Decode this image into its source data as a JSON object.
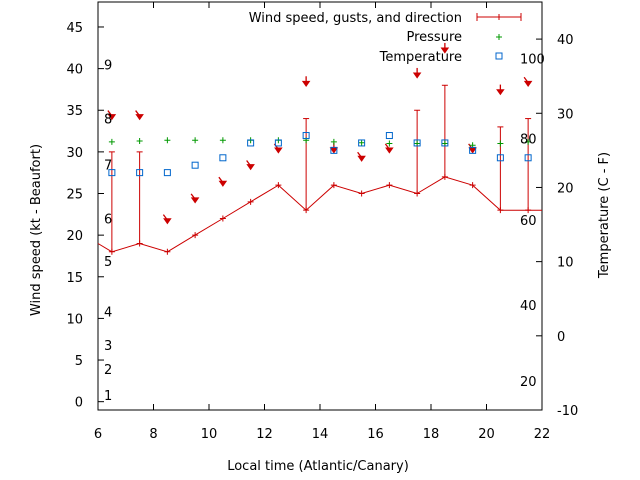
{
  "chart_data": {
    "type": "line",
    "xlabel": "Local time (Atlantic/Canary)",
    "ylabel": "Wind speed (kt - Beaufort)",
    "y2label": "Temperature (C - F)",
    "xlim": [
      6,
      22
    ],
    "ylim": [
      -1,
      48
    ],
    "y2lim": [
      -10,
      45
    ],
    "xticks": [
      "6",
      "8",
      "10",
      "12",
      "14",
      "16",
      "18",
      "20",
      "22"
    ],
    "yticks": [
      "0",
      "5",
      "10",
      "15",
      "20",
      "25",
      "30",
      "35",
      "40",
      "45"
    ],
    "y2ticks": [
      "-10",
      "0",
      "10",
      "20",
      "30",
      "40"
    ],
    "beaufort_labels": [
      "1",
      "2",
      "3",
      "4",
      "5",
      "6",
      "7",
      "8",
      "9"
    ],
    "fahrenheit_labels": [
      "20",
      "40",
      "60",
      "80",
      "100"
    ],
    "legend_position": "top-right",
    "colors": {
      "wind": "#cc0000",
      "pressure": "#009900",
      "temperature": "#0066cc"
    },
    "series": [
      {
        "name": "Wind speed, gusts, and direction",
        "x": [
          6,
          6.5,
          7.5,
          8.5,
          9.5,
          10.5,
          11.5,
          12.5,
          13.5,
          14.5,
          15.5,
          16.5,
          17.5,
          18.5,
          19.5,
          20.5,
          21.5,
          22
        ],
        "values": [
          19,
          18,
          19,
          18,
          20,
          22,
          24,
          26,
          23,
          26,
          25,
          26,
          25,
          27,
          26,
          23,
          23,
          23
        ],
        "gusts": [
          null,
          30,
          30,
          null,
          null,
          null,
          null,
          null,
          34,
          null,
          null,
          null,
          35,
          38,
          null,
          33,
          34,
          null
        ],
        "arrow_y": [
          null,
          34,
          34,
          21.5,
          24,
          26,
          28,
          30,
          38,
          30,
          29,
          30,
          39,
          42,
          30,
          37,
          38,
          null
        ],
        "arrow_dir": [
          null,
          "SE",
          "SE",
          "SE",
          "SE",
          "SE",
          "SE",
          "SE",
          "S",
          "S",
          "SE",
          "SE",
          "S",
          "S",
          "SE",
          "S",
          "SE",
          null
        ]
      },
      {
        "name": "Pressure",
        "x": [
          6.5,
          7.5,
          8.5,
          9.5,
          10.5,
          11.5,
          12.5,
          13.5,
          14.5,
          15.5,
          16.5,
          17.5,
          18.5,
          19.5,
          20.5,
          21.5
        ],
        "values": [
          31.2,
          31.3,
          31.4,
          31.4,
          31.4,
          31.4,
          31.4,
          31.4,
          31.2,
          31.1,
          31.0,
          31.0,
          31.0,
          30.8,
          31.0,
          31.2
        ]
      },
      {
        "name": "Temperature",
        "x": [
          6.5,
          7.5,
          8.5,
          9.5,
          10.5,
          11.5,
          12.5,
          13.5,
          14.5,
          15.5,
          16.5,
          17.5,
          18.5,
          19.5,
          20.5,
          21.5
        ],
        "values": [
          22,
          22,
          22,
          23,
          24,
          26,
          26,
          27,
          25,
          26,
          27,
          26,
          26,
          25,
          24,
          24
        ]
      }
    ]
  }
}
